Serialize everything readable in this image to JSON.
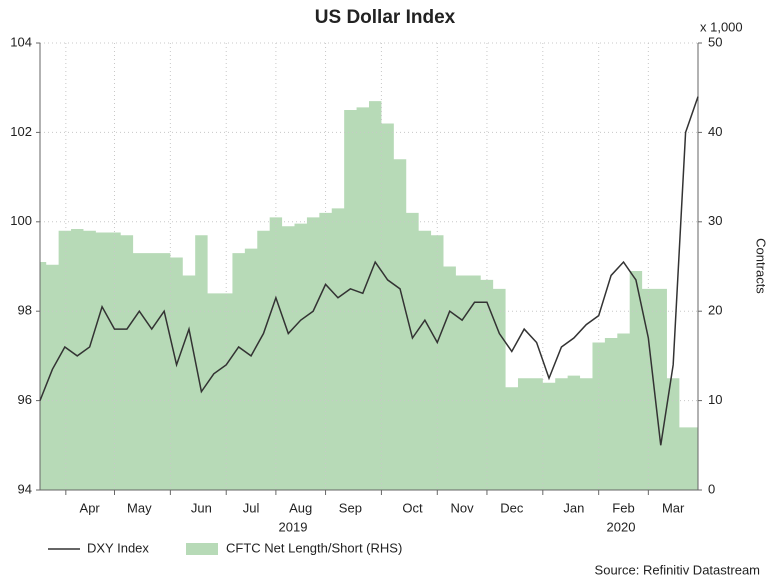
{
  "chart_data": {
    "type": "line-area",
    "title": "US Dollar Index",
    "categories": [
      null,
      null,
      null,
      null,
      "Apr",
      null,
      null,
      null,
      "May",
      null,
      null,
      null,
      null,
      "Jun",
      null,
      null,
      null,
      "Jul",
      null,
      null,
      null,
      "Aug",
      null,
      null,
      null,
      "Sep",
      null,
      null,
      null,
      null,
      "Oct",
      null,
      null,
      null,
      "Nov",
      null,
      null,
      null,
      "Dec",
      null,
      null,
      null,
      null,
      "Jan",
      null,
      null,
      null,
      "Feb",
      null,
      null,
      null,
      "Mar",
      null,
      null
    ],
    "year_labels": [
      "2019",
      "2020"
    ],
    "series": [
      {
        "name": "DXY Index",
        "color": "#333333",
        "kind": "line",
        "values": [
          96.0,
          96.7,
          97.2,
          97.0,
          97.2,
          98.1,
          97.6,
          97.6,
          98.0,
          97.6,
          98.0,
          96.8,
          97.6,
          96.2,
          96.6,
          96.8,
          97.2,
          97.0,
          97.5,
          98.3,
          97.5,
          97.8,
          98.0,
          98.6,
          98.3,
          98.5,
          98.4,
          99.1,
          98.7,
          98.5,
          97.4,
          97.8,
          97.3,
          98.0,
          97.8,
          98.2,
          98.2,
          97.5,
          97.1,
          97.6,
          97.3,
          96.5,
          97.2,
          97.4,
          97.7,
          97.9,
          98.8,
          99.1,
          98.7,
          97.4,
          95.0,
          96.8,
          102.0,
          102.8
        ]
      },
      {
        "name": "CFTC Net Length/Short (RHS)",
        "color": "#b7dab7",
        "kind": "area",
        "axis": "y2",
        "values": [
          25.5,
          25.2,
          29,
          29.2,
          29,
          28.8,
          28.8,
          28.5,
          26.5,
          26.5,
          26.5,
          26,
          24,
          28.5,
          22,
          22,
          26.5,
          27,
          29,
          30.5,
          29.5,
          29.8,
          30.5,
          31,
          31.5,
          42.5,
          42.8,
          43.5,
          41,
          37,
          31,
          29,
          28.5,
          25,
          24,
          24,
          23.5,
          22.5,
          11.5,
          12.5,
          12.5,
          12,
          12.5,
          12.8,
          12.5,
          16.5,
          17,
          17.5,
          24.5,
          22.5,
          22.5,
          12.5,
          7,
          7
        ]
      }
    ],
    "ylim": [
      94,
      104
    ],
    "yticks": [
      94,
      96,
      98,
      100,
      102,
      104
    ],
    "y2lim": [
      0,
      50
    ],
    "y2ticks": [
      0,
      10,
      20,
      30,
      40,
      50
    ],
    "y2label": "Contracts",
    "y2unit": "x 1,000",
    "grid": true,
    "source": "Source: Refinitiv Datastream"
  }
}
